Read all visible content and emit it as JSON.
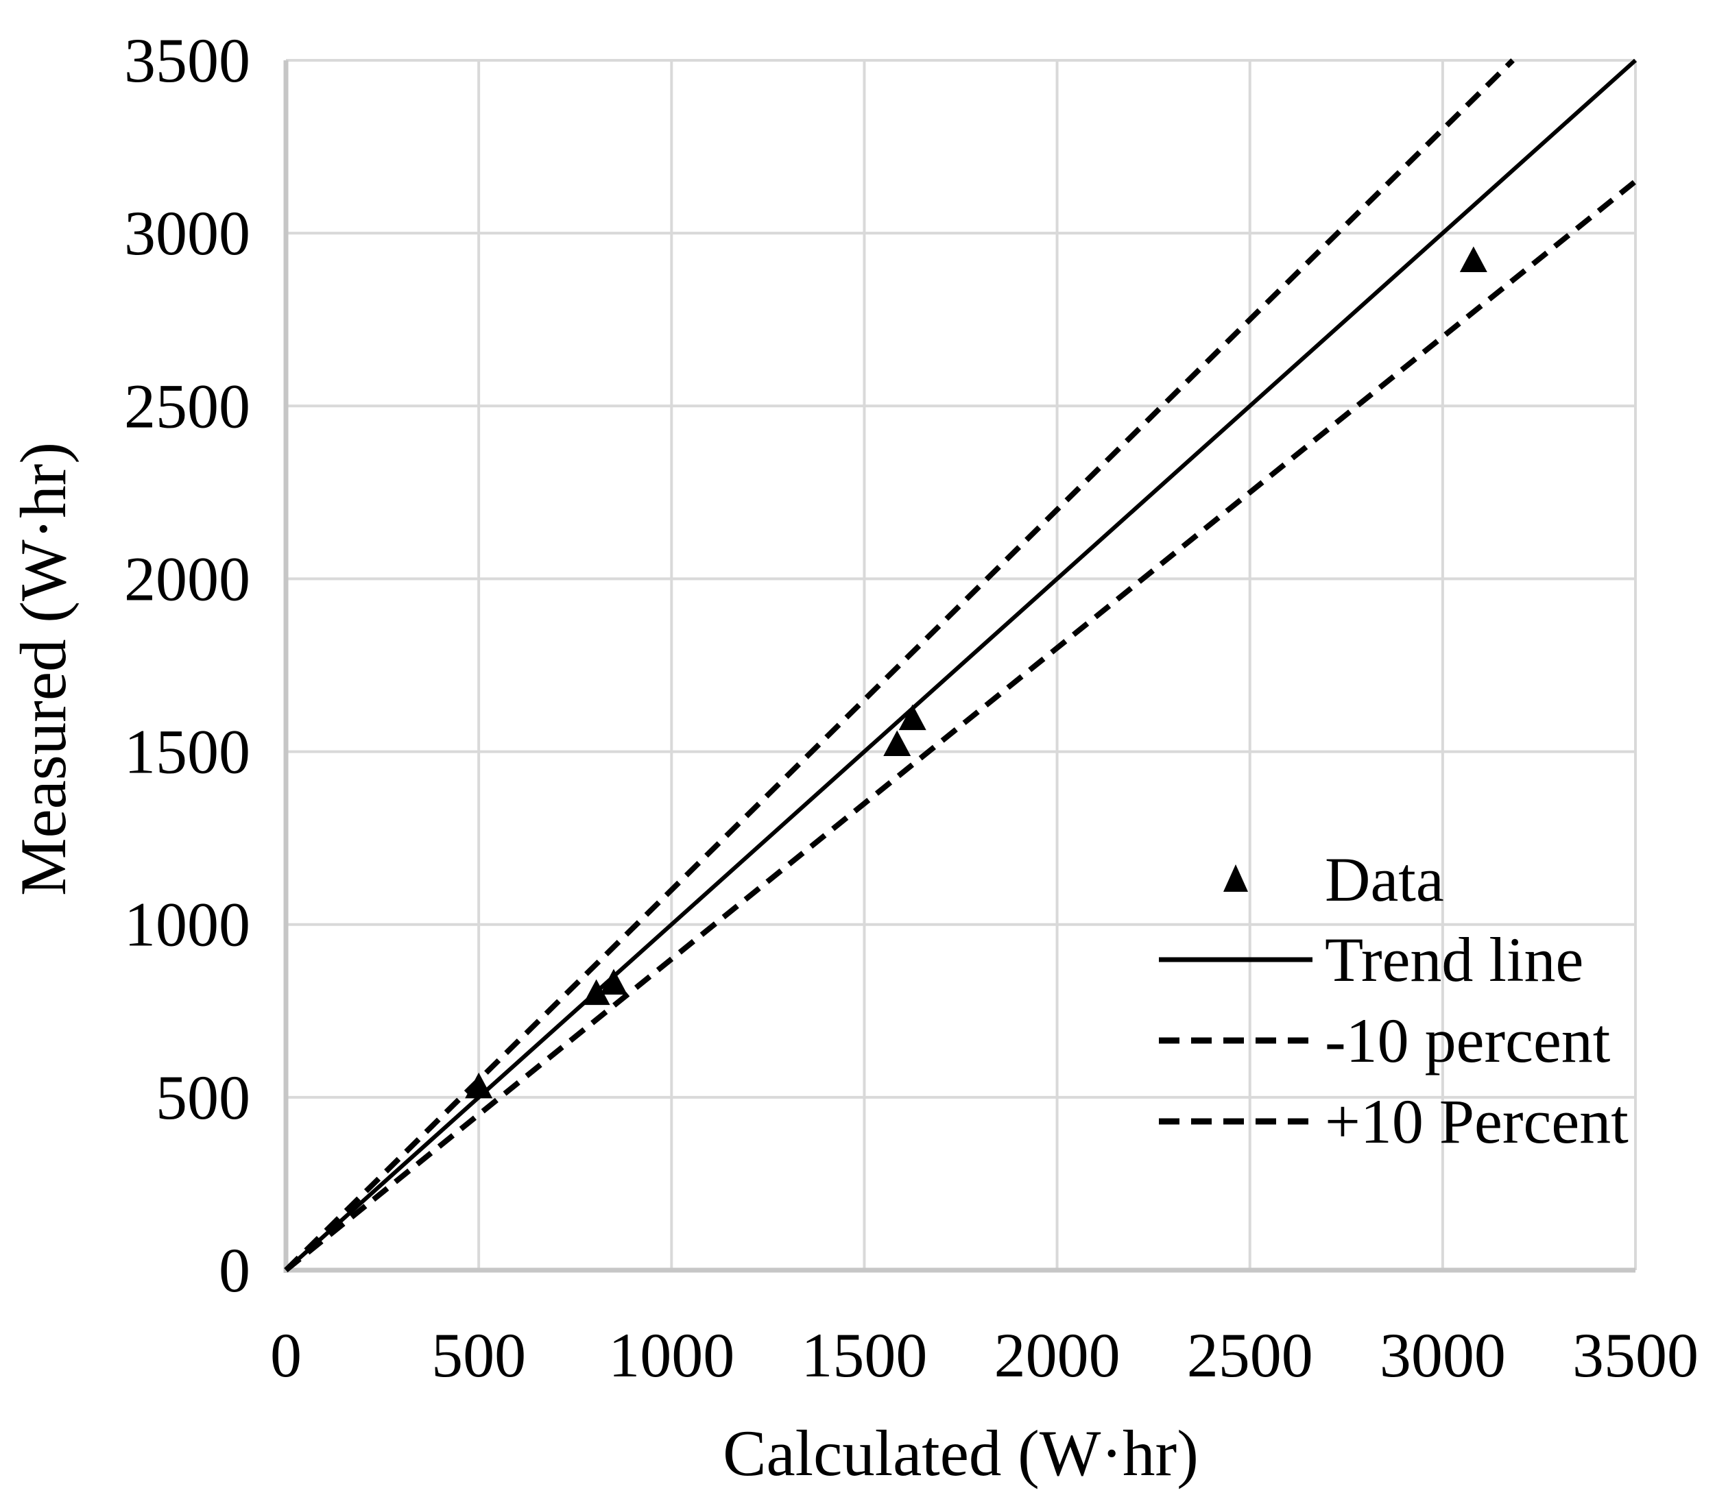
{
  "figure": {
    "background_color": "#ffffff",
    "text_color": "#000000",
    "gridline_color": "#D9D9D9",
    "axis_line_color": "#C6C6C6",
    "series_color": "#000000"
  },
  "chart_data": {
    "type": "scatter",
    "title": "",
    "xlabel": "Calculated (W·hr)",
    "ylabel": "Measured (W·hr)",
    "xlim": [
      0,
      3500
    ],
    "ylim": [
      0,
      3500
    ],
    "xticks": [
      0,
      500,
      1000,
      1500,
      2000,
      2500,
      3000,
      3500
    ],
    "yticks": [
      0,
      500,
      1000,
      1500,
      2000,
      2500,
      3000,
      3500
    ],
    "grid": true,
    "legend_position": "inside-right",
    "series": [
      {
        "name": "Data",
        "kind": "scatter",
        "marker": "filled-triangle-up",
        "color": "#000000",
        "points": [
          [
            500,
            530
          ],
          [
            805,
            800
          ],
          [
            850,
            830
          ],
          [
            1585,
            1520
          ],
          [
            1625,
            1595
          ],
          [
            3080,
            2920
          ]
        ]
      },
      {
        "name": "Trend line",
        "kind": "line",
        "style": "solid",
        "slope": 1.0,
        "color": "#000000"
      },
      {
        "name": "-10 percent",
        "kind": "line",
        "style": "dashed",
        "slope": 0.9,
        "color": "#000000"
      },
      {
        "name": "+10 Percent",
        "kind": "line",
        "style": "dashed",
        "slope": 1.1,
        "color": "#000000"
      }
    ]
  }
}
